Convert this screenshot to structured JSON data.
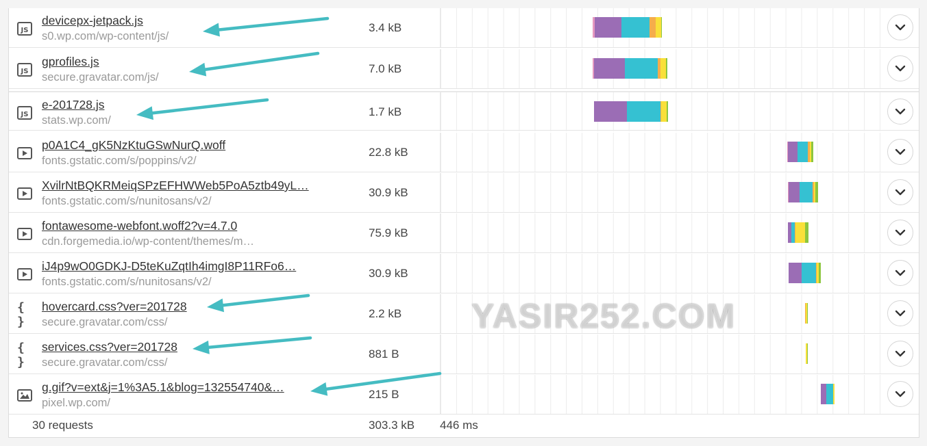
{
  "rows": [
    {
      "icon": "js-file-icon",
      "name": "devicepx-jetpack.js",
      "path": "s0.wp.com/wp-content/js/",
      "size": "3.4 kB"
    },
    {
      "icon": "js-file-icon",
      "name": "gprofiles.js",
      "path": "secure.gravatar.com/js/",
      "size": "7.0 kB"
    },
    {
      "icon": "js-file-icon",
      "name": "e-201728.js",
      "path": "stats.wp.com/",
      "size": "1.7 kB"
    },
    {
      "icon": "font-file-icon",
      "name": "p0A1C4_gK5NzKtuGSwNurQ.woff",
      "path": "fonts.gstatic.com/s/poppins/v2/",
      "size": "22.8 kB"
    },
    {
      "icon": "font-file-icon",
      "name": "XvilrNtBQKRMeiqSPzEFHWWeb5PoA5ztb49yL…",
      "path": "fonts.gstatic.com/s/nunitosans/v2/",
      "size": "30.9 kB"
    },
    {
      "icon": "font-file-icon",
      "name": "fontawesome-webfont.woff2?v=4.7.0",
      "path": "cdn.forgemedia.io/wp-content/themes/m…",
      "size": "75.9 kB"
    },
    {
      "icon": "font-file-icon",
      "name": "iJ4p9wO0GDKJ-D5teKuZqtIh4imgI8P11RFo6…",
      "path": "fonts.gstatic.com/s/nunitosans/v2/",
      "size": "30.9 kB"
    },
    {
      "icon": "css-file-icon",
      "name": "hovercard.css?ver=201728",
      "path": "secure.gravatar.com/css/",
      "size": "2.2 kB"
    },
    {
      "icon": "css-file-icon",
      "name": "services.css?ver=201728",
      "path": "secure.gravatar.com/css/",
      "size": "881 B"
    },
    {
      "icon": "image-file-icon",
      "name": "g.gif?v=ext&j=1%3A5.1&blog=132554740&…",
      "path": "pixel.wp.com/",
      "size": "215 B"
    }
  ],
  "footer": {
    "requests": "30 requests",
    "total_size": "303.3 kB",
    "load_time": "446 ms"
  },
  "watermark": "YASIR252.COM",
  "colors": {
    "blocked": "#e699c0",
    "dns": "#9b6db5",
    "connect": "#35c1d2",
    "send": "#f5ad4b",
    "wait": "#f9e03a",
    "receive": "#8cc63f",
    "arrow": "#45bcc2"
  },
  "waterfall_timing_ms": [
    {
      "start": 154.1,
      "segments": [
        [
          1.7,
          "blocked"
        ],
        [
          27.5,
          "dns"
        ],
        [
          28.2,
          "connect"
        ],
        [
          6.4,
          "send"
        ],
        [
          5.3,
          "wait"
        ],
        [
          0.7,
          "receive"
        ]
      ]
    },
    {
      "start": 154.1,
      "segments": [
        [
          1.0,
          "blocked"
        ],
        [
          31.7,
          "dns"
        ],
        [
          33.1,
          "connect"
        ],
        [
          2.5,
          "send"
        ],
        [
          5.6,
          "wait"
        ],
        [
          1.4,
          "receive"
        ]
      ]
    },
    {
      "start": 155.1,
      "segments": [
        [
          33.5,
          "dns"
        ],
        [
          34.1,
          "connect"
        ],
        [
          0.7,
          "send"
        ],
        [
          5.6,
          "wait"
        ],
        [
          1.1,
          "receive"
        ]
      ]
    },
    {
      "start": 350.8,
      "segments": [
        [
          0.7,
          "blocked"
        ],
        [
          9.9,
          "dns"
        ],
        [
          10.6,
          "connect"
        ],
        [
          1.8,
          "send"
        ],
        [
          1.4,
          "wait"
        ],
        [
          2.5,
          "receive"
        ]
      ]
    },
    {
      "start": 351.5,
      "segments": [
        [
          0.7,
          "blocked"
        ],
        [
          11.6,
          "dns"
        ],
        [
          12.7,
          "connect"
        ],
        [
          1.8,
          "send"
        ],
        [
          1.4,
          "wait"
        ],
        [
          2.5,
          "receive"
        ]
      ]
    },
    {
      "start": 351.5,
      "segments": [
        [
          3.5,
          "dns"
        ],
        [
          3.9,
          "connect"
        ],
        [
          0.4,
          "send"
        ],
        [
          9.9,
          "wait"
        ],
        [
          3.2,
          "receive"
        ]
      ]
    },
    {
      "start": 352.2,
      "segments": [
        [
          13.4,
          "dns"
        ],
        [
          14.4,
          "connect"
        ],
        [
          0.7,
          "send"
        ],
        [
          2.5,
          "wait"
        ],
        [
          2.1,
          "receive"
        ]
      ]
    },
    {
      "start": 369.1,
      "segments": [
        [
          0.4,
          "send"
        ],
        [
          1.8,
          "wait"
        ],
        [
          0.4,
          "receive"
        ]
      ]
    },
    {
      "start": 369.4,
      "segments": [
        [
          0.4,
          "send"
        ],
        [
          1.4,
          "wait"
        ],
        [
          0.4,
          "receive"
        ]
      ]
    },
    {
      "start": 385.3,
      "segments": [
        [
          5.3,
          "dns"
        ],
        [
          6.7,
          "connect"
        ],
        [
          1.8,
          "wait"
        ]
      ]
    }
  ],
  "waterfall_scale_ms": 446,
  "annotated_rows": [
    0,
    1,
    2,
    7,
    8,
    9
  ]
}
